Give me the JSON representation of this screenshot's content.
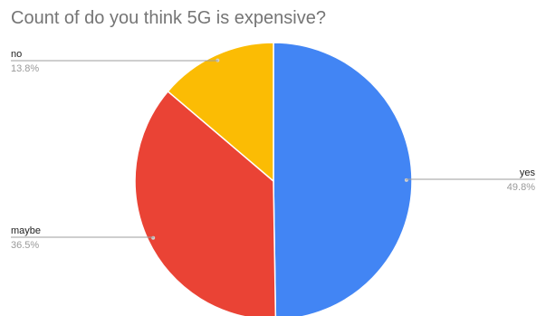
{
  "chart_data": {
    "type": "pie",
    "title": "Count of do you think 5G is expensive?",
    "slices": [
      {
        "label": "yes",
        "value": 49.8,
        "percent_label": "49.8%",
        "color": "#4285f4"
      },
      {
        "label": "maybe",
        "value": 36.5,
        "percent_label": "36.5%",
        "color": "#ea4335"
      },
      {
        "label": "no",
        "value": 13.8,
        "percent_label": "13.8%",
        "color": "#fbbc04"
      }
    ],
    "start_angle_deg": 0,
    "direction": "clockwise",
    "legend": "none"
  }
}
